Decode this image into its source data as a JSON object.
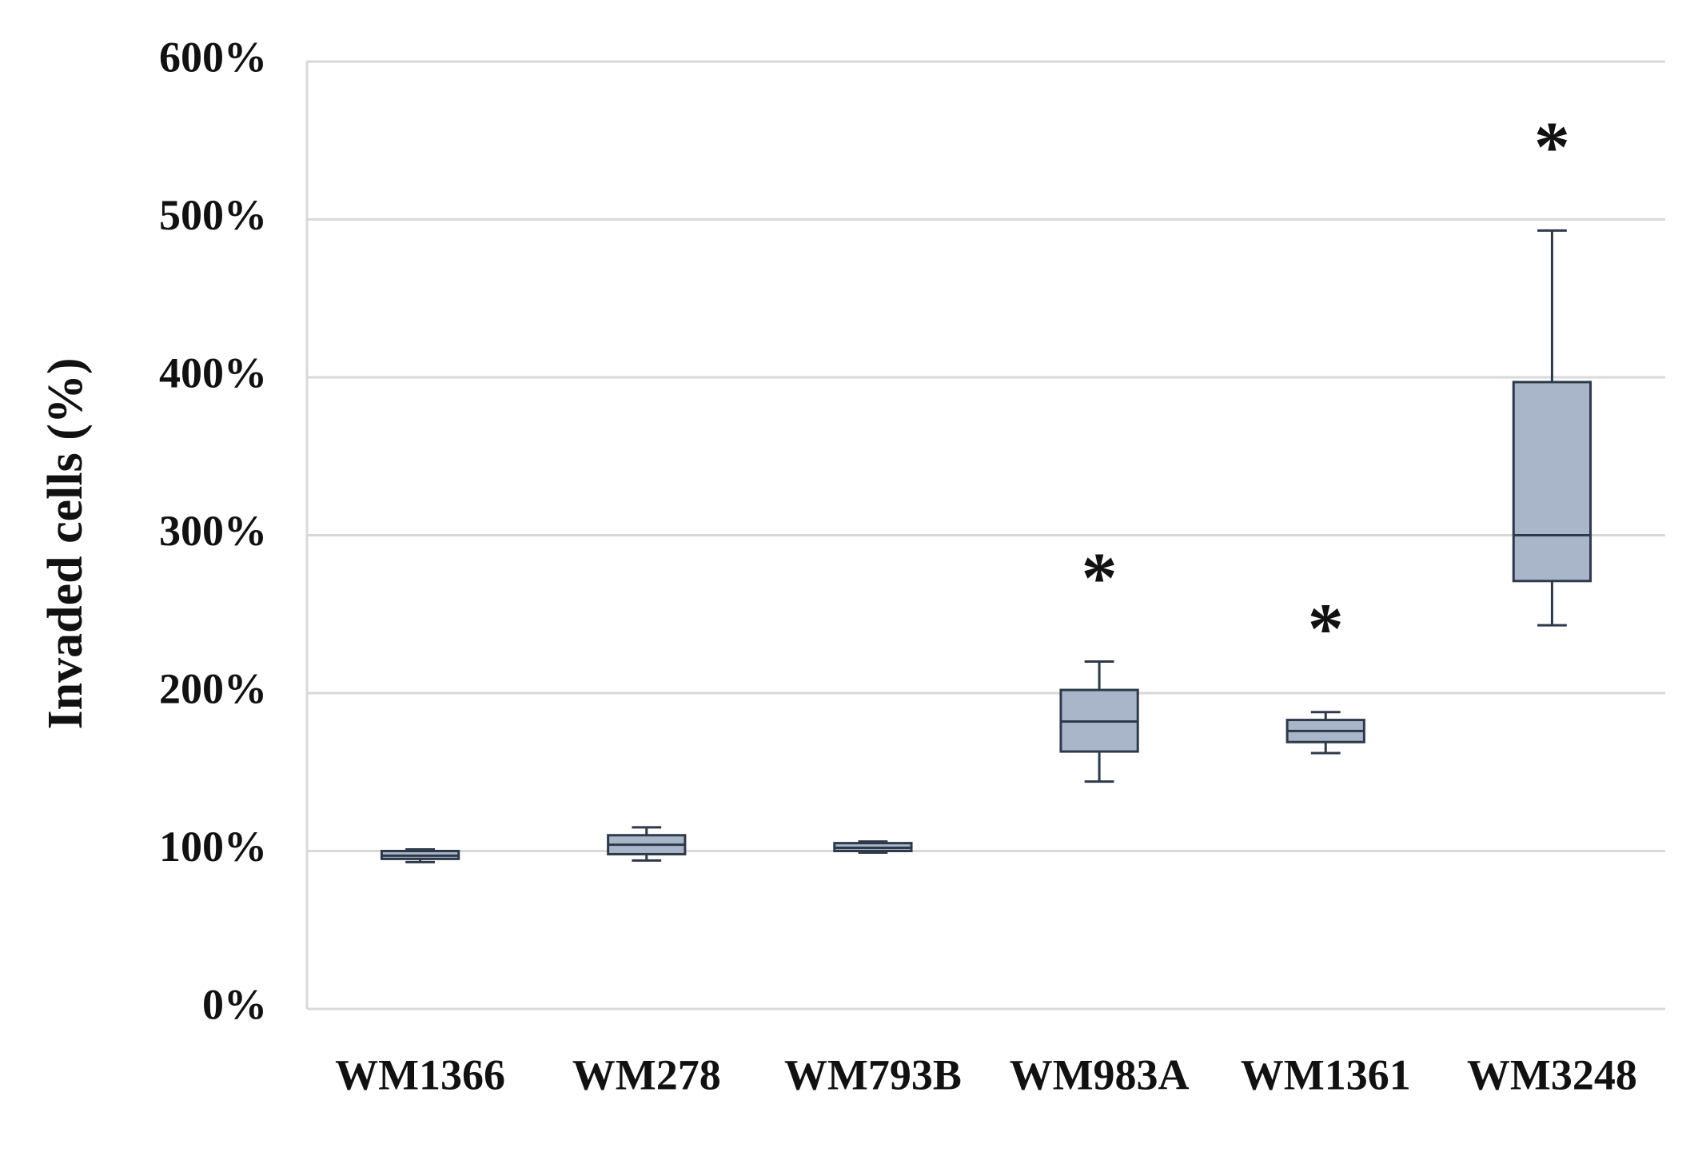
{
  "chart_data": {
    "type": "box",
    "y_label": "Invaded cells  (%)",
    "categories": [
      "WM1366",
      "WM278",
      "WM793B",
      "WM983A",
      "WM1361",
      "WM3248"
    ],
    "min": [
      93,
      94,
      99,
      144,
      162,
      243
    ],
    "q1": [
      95,
      98,
      100,
      163,
      169,
      271
    ],
    "median": [
      97,
      104,
      102,
      182,
      176,
      300
    ],
    "q3": [
      100,
      110,
      105,
      202,
      183,
      397
    ],
    "max": [
      101,
      115,
      106,
      220,
      188,
      493
    ],
    "significance": [
      null,
      null,
      null,
      "*",
      "*",
      "*"
    ],
    "color": "#a9b6c9",
    "edge_color": "#2e3a4a",
    "ylim": [
      0,
      600
    ],
    "yticks": [
      {
        "value": 0,
        "label": "0%"
      },
      {
        "value": 100,
        "label": "100%"
      },
      {
        "value": 200,
        "label": "200%"
      },
      {
        "value": 300,
        "label": "300%"
      },
      {
        "value": 400,
        "label": "400%"
      },
      {
        "value": 500,
        "label": "500%"
      },
      {
        "value": 600,
        "label": "600%"
      }
    ],
    "grid": true
  }
}
